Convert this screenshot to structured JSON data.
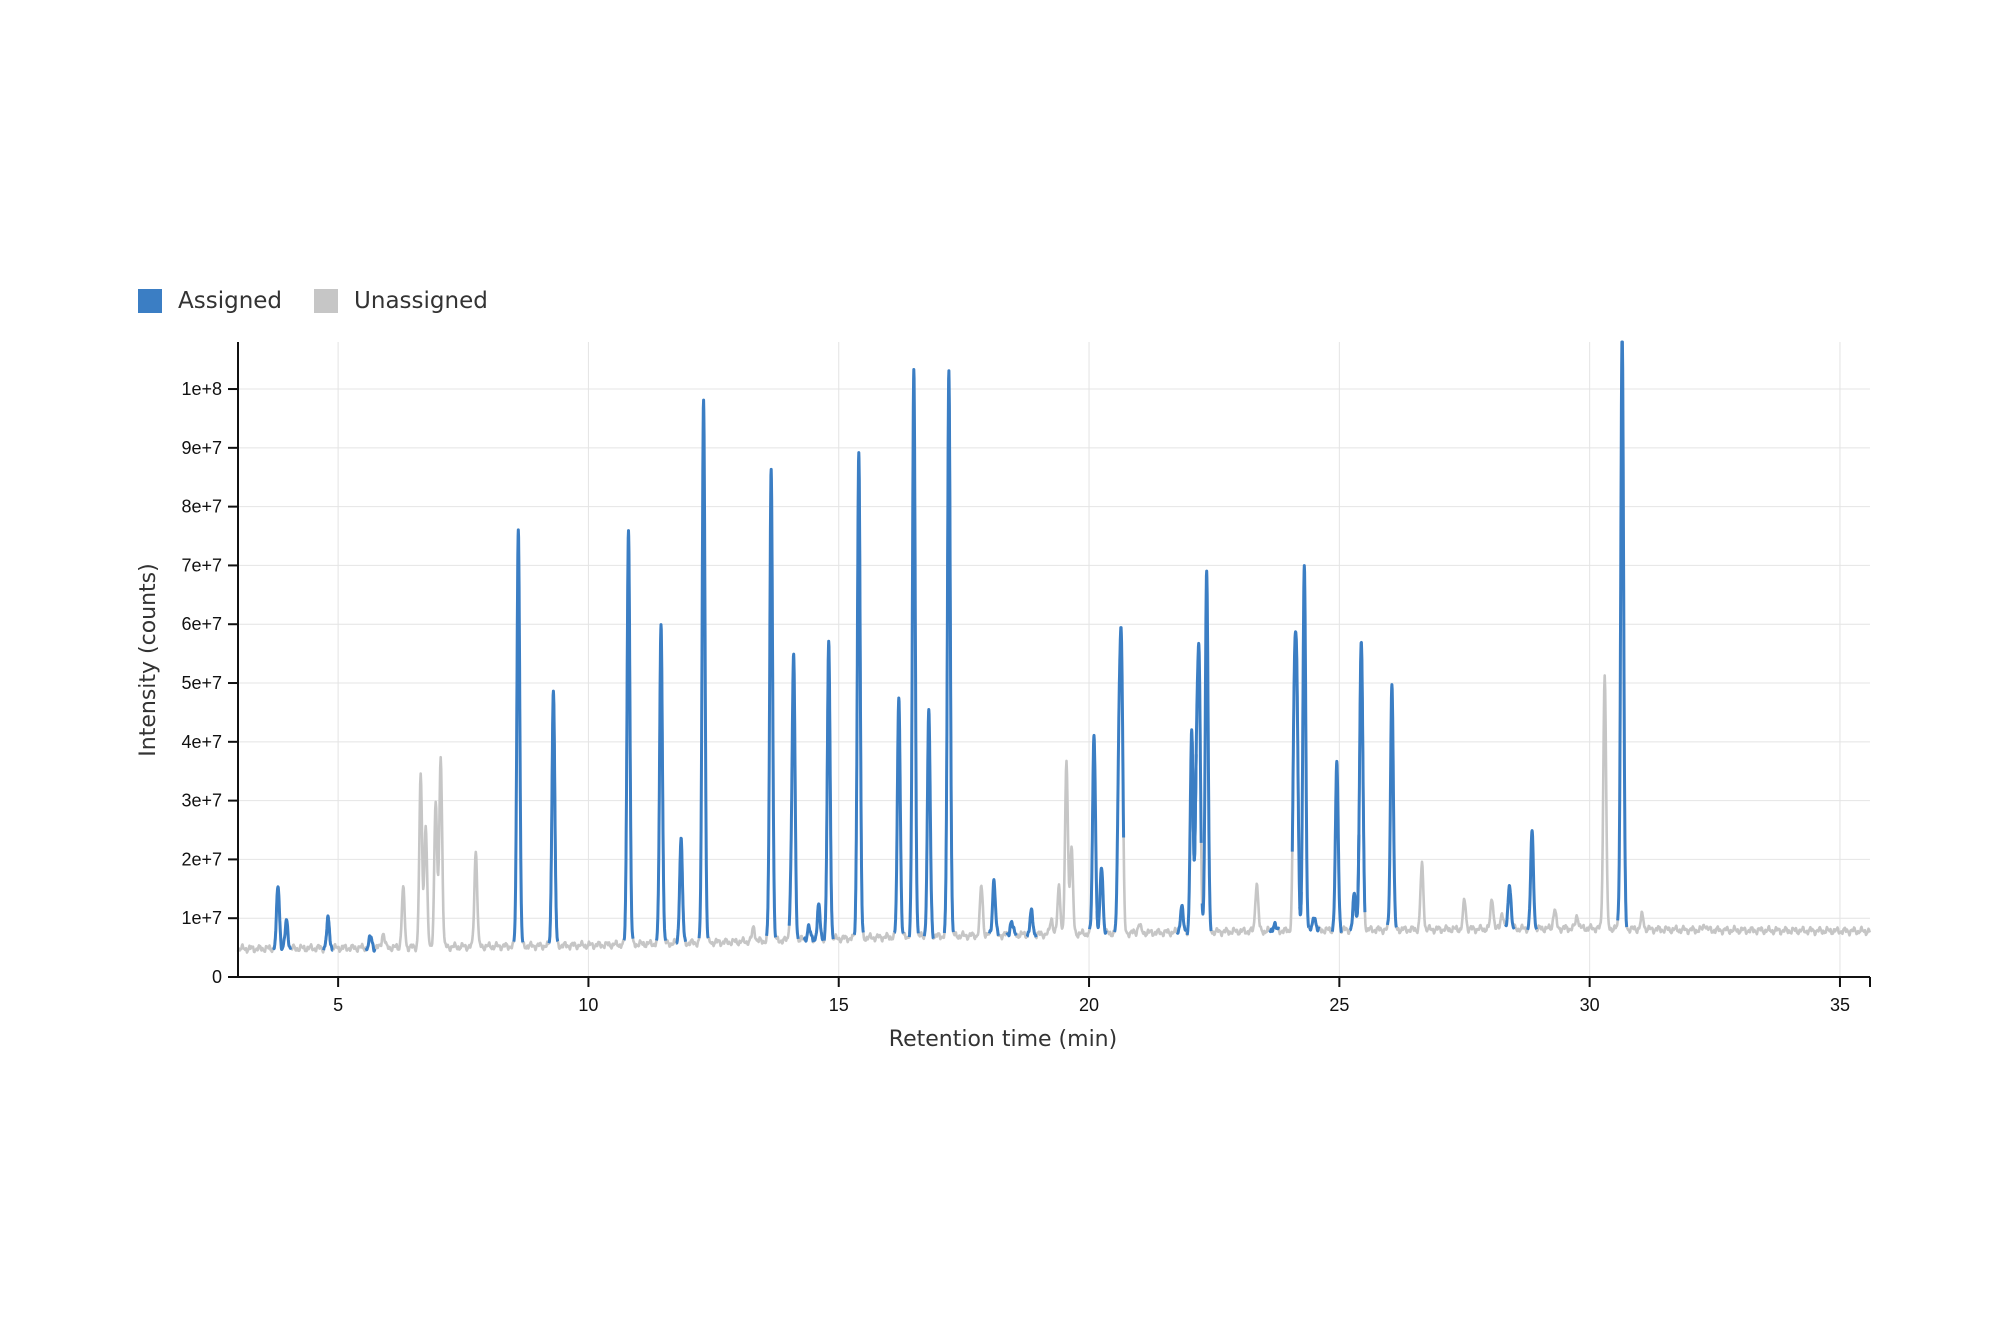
{
  "chart_data": {
    "type": "line",
    "xlabel": "Retention time (min)",
    "ylabel": "Intensity (counts)",
    "xlim": [
      3,
      35.6
    ],
    "ylim": [
      0,
      108000000
    ],
    "x_ticks": [
      5,
      10,
      15,
      20,
      25,
      30,
      35
    ],
    "y_ticks": [
      0,
      10000000,
      20000000,
      30000000,
      40000000,
      50000000,
      60000000,
      70000000,
      80000000,
      90000000,
      100000000
    ],
    "y_tick_labels": [
      "0",
      "1e+7",
      "2e+7",
      "3e+7",
      "4e+7",
      "5e+7",
      "6e+7",
      "7e+7",
      "8e+7",
      "9e+7",
      "1e+8"
    ],
    "x_tick_labels": [
      "5",
      "10",
      "15",
      "20",
      "25",
      "30",
      "35"
    ],
    "grid": true,
    "legend_position": "top-left",
    "baseline": [
      [
        3,
        4800000
      ],
      [
        6,
        5000000
      ],
      [
        10,
        5400000
      ],
      [
        13,
        6000000
      ],
      [
        16,
        6800000
      ],
      [
        20,
        7400000
      ],
      [
        25,
        8000000
      ],
      [
        30,
        8300000
      ],
      [
        32,
        8000000
      ],
      [
        35.6,
        7800000
      ]
    ],
    "series": [
      {
        "name": "Assigned",
        "color": "#3b7ec4",
        "peaks": [
          [
            3.8,
            15500000
          ],
          [
            3.97,
            9500000
          ],
          [
            4.8,
            9800000
          ],
          [
            5.65,
            6800000
          ],
          [
            8.6,
            76500000
          ],
          [
            9.3,
            49000000
          ],
          [
            10.8,
            76500000
          ],
          [
            11.45,
            60000000
          ],
          [
            11.85,
            23500000
          ],
          [
            12.3,
            98500000
          ],
          [
            13.65,
            86500000
          ],
          [
            14.1,
            53000000
          ],
          [
            14.4,
            8500000
          ],
          [
            14.6,
            12000000
          ],
          [
            14.8,
            56500000
          ],
          [
            15.4,
            89500000
          ],
          [
            16.2,
            48000000
          ],
          [
            16.5,
            103000000
          ],
          [
            16.8,
            45000000
          ],
          [
            17.2,
            103000000
          ],
          [
            18.1,
            16500000
          ],
          [
            18.45,
            9500000
          ],
          [
            18.85,
            11000000
          ],
          [
            20.1,
            41500000
          ],
          [
            20.25,
            19000000
          ],
          [
            20.6,
            38500000
          ],
          [
            21.85,
            12000000
          ],
          [
            22.05,
            41500000
          ],
          [
            22.15,
            35500000
          ],
          [
            22.35,
            69000000
          ],
          [
            23.7,
            9000000
          ],
          [
            24.15,
            47000000
          ],
          [
            24.3,
            70000000
          ],
          [
            24.5,
            10500000
          ],
          [
            24.95,
            36000000
          ],
          [
            25.3,
            14000000
          ],
          [
            25.42,
            31500000
          ],
          [
            26.05,
            50000000
          ],
          [
            28.4,
            16000000
          ],
          [
            28.85,
            24500000
          ],
          [
            30.65,
            110000000
          ]
        ]
      },
      {
        "name": "Unassigned",
        "color": "#c6c6c6",
        "peaks": [
          [
            5.9,
            7500000
          ],
          [
            6.3,
            15000000
          ],
          [
            6.65,
            34000000
          ],
          [
            6.75,
            26000000
          ],
          [
            6.95,
            30000000
          ],
          [
            7.05,
            37500000
          ],
          [
            7.75,
            21500000
          ],
          [
            13.3,
            8500000
          ],
          [
            14.05,
            14000000
          ],
          [
            17.85,
            15500000
          ],
          [
            19.25,
            10000000
          ],
          [
            19.4,
            15500000
          ],
          [
            19.55,
            36500000
          ],
          [
            19.65,
            22000000
          ],
          [
            20.65,
            51000000
          ],
          [
            21.0,
            9000000
          ],
          [
            22.2,
            49000000
          ],
          [
            23.35,
            16000000
          ],
          [
            24.1,
            44000000
          ],
          [
            25.45,
            40500000
          ],
          [
            26.65,
            19000000
          ],
          [
            27.5,
            13000000
          ],
          [
            28.05,
            13500000
          ],
          [
            28.25,
            11000000
          ],
          [
            29.3,
            11500000
          ],
          [
            29.75,
            10500000
          ],
          [
            30.3,
            51500000
          ],
          [
            30.6,
            9500000
          ],
          [
            31.05,
            10500000
          ],
          [
            32.3,
            9000000
          ]
        ]
      }
    ]
  }
}
